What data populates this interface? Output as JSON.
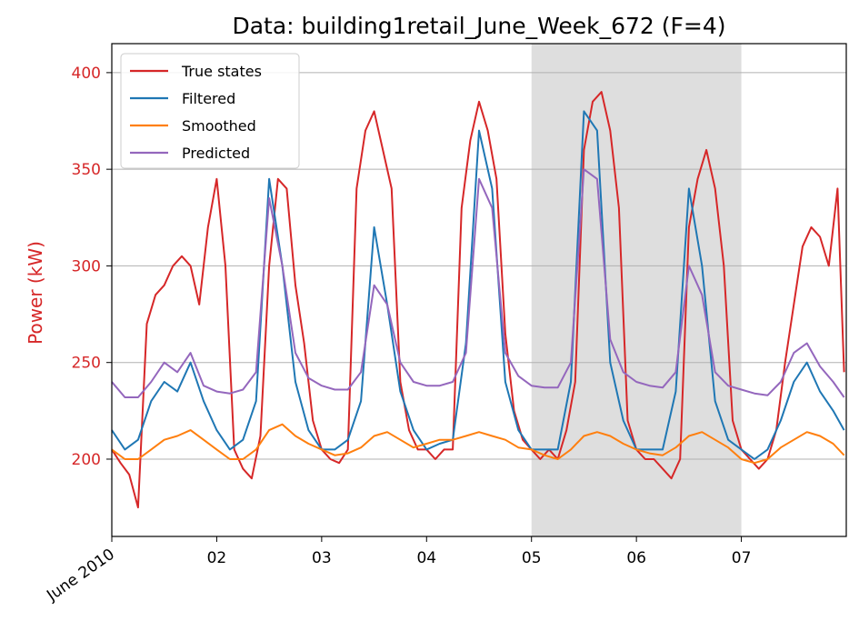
{
  "chart_data": {
    "type": "line",
    "title": "Data: building1retail_June_Week_672 (F=4)",
    "xlabel": "",
    "ylabel": "Power (kW)",
    "xlim": [
      "2010-06-01",
      "2010-06-08"
    ],
    "ylim": [
      160,
      415
    ],
    "yticks": [
      200,
      250,
      300,
      350,
      400
    ],
    "xtick_labels": [
      {
        "date": "2010-06-01",
        "label": "June 2010",
        "rotated": true
      },
      {
        "date": "2010-06-02",
        "label": "02"
      },
      {
        "date": "2010-06-03",
        "label": "03"
      },
      {
        "date": "2010-06-04",
        "label": "04"
      },
      {
        "date": "2010-06-05",
        "label": "05"
      },
      {
        "date": "2010-06-06",
        "label": "06"
      },
      {
        "date": "2010-06-07",
        "label": "07"
      }
    ],
    "grid": "horizontal",
    "legend_position": "top-left",
    "shaded_region": {
      "from": "2010-06-05",
      "to": "2010-06-07",
      "color": "#dedede"
    },
    "series": [
      {
        "name": "True states",
        "color": "#d62728",
        "x": [
          "2010-06-01 00:00",
          "2010-06-01 02:00",
          "2010-06-01 04:00",
          "2010-06-01 06:00",
          "2010-06-01 08:00",
          "2010-06-01 10:00",
          "2010-06-01 12:00",
          "2010-06-01 14:00",
          "2010-06-01 16:00",
          "2010-06-01 18:00",
          "2010-06-01 20:00",
          "2010-06-01 22:00",
          "2010-06-02 00:00",
          "2010-06-02 02:00",
          "2010-06-02 04:00",
          "2010-06-02 06:00",
          "2010-06-02 08:00",
          "2010-06-02 10:00",
          "2010-06-02 12:00",
          "2010-06-02 14:00",
          "2010-06-02 16:00",
          "2010-06-02 18:00",
          "2010-06-02 20:00",
          "2010-06-02 22:00",
          "2010-06-03 00:00",
          "2010-06-03 02:00",
          "2010-06-03 04:00",
          "2010-06-03 06:00",
          "2010-06-03 08:00",
          "2010-06-03 10:00",
          "2010-06-03 12:00",
          "2010-06-03 14:00",
          "2010-06-03 16:00",
          "2010-06-03 18:00",
          "2010-06-03 20:00",
          "2010-06-03 22:00",
          "2010-06-04 00:00",
          "2010-06-04 02:00",
          "2010-06-04 04:00",
          "2010-06-04 06:00",
          "2010-06-04 08:00",
          "2010-06-04 10:00",
          "2010-06-04 12:00",
          "2010-06-04 14:00",
          "2010-06-04 16:00",
          "2010-06-04 18:00",
          "2010-06-04 20:00",
          "2010-06-04 22:00",
          "2010-06-05 00:00",
          "2010-06-05 02:00",
          "2010-06-05 04:00",
          "2010-06-05 06:00",
          "2010-06-05 08:00",
          "2010-06-05 10:00",
          "2010-06-05 12:00",
          "2010-06-05 14:00",
          "2010-06-05 16:00",
          "2010-06-05 18:00",
          "2010-06-05 20:00",
          "2010-06-05 22:00",
          "2010-06-06 00:00",
          "2010-06-06 02:00",
          "2010-06-06 04:00",
          "2010-06-06 06:00",
          "2010-06-06 08:00",
          "2010-06-06 10:00",
          "2010-06-06 12:00",
          "2010-06-06 14:00",
          "2010-06-06 16:00",
          "2010-06-06 18:00",
          "2010-06-06 20:00",
          "2010-06-06 22:00",
          "2010-06-07 00:00",
          "2010-06-07 02:00",
          "2010-06-07 04:00",
          "2010-06-07 06:00",
          "2010-06-07 08:00",
          "2010-06-07 10:00",
          "2010-06-07 12:00",
          "2010-06-07 14:00",
          "2010-06-07 16:00",
          "2010-06-07 18:00",
          "2010-06-07 20:00",
          "2010-06-07 22:00",
          "2010-06-07 23:30"
        ],
        "y": [
          205,
          198,
          192,
          175,
          270,
          285,
          290,
          300,
          305,
          300,
          280,
          320,
          345,
          300,
          205,
          195,
          190,
          212,
          300,
          345,
          340,
          290,
          260,
          220,
          205,
          200,
          198,
          205,
          340,
          370,
          380,
          360,
          340,
          240,
          215,
          205,
          205,
          200,
          205,
          205,
          330,
          365,
          385,
          370,
          345,
          265,
          225,
          210,
          205,
          200,
          205,
          200,
          215,
          240,
          360,
          385,
          390,
          370,
          330,
          220,
          205,
          200,
          200,
          195,
          190,
          200,
          320,
          345,
          360,
          340,
          300,
          220,
          205,
          200,
          195,
          200,
          215,
          250,
          280,
          310,
          320,
          315,
          300,
          340,
          245
        ]
      },
      {
        "name": "Filtered",
        "color": "#1f77b4",
        "x": [
          "2010-06-01 00:00",
          "2010-06-01 03:00",
          "2010-06-01 06:00",
          "2010-06-01 09:00",
          "2010-06-01 12:00",
          "2010-06-01 15:00",
          "2010-06-01 18:00",
          "2010-06-01 21:00",
          "2010-06-02 00:00",
          "2010-06-02 03:00",
          "2010-06-02 06:00",
          "2010-06-02 09:00",
          "2010-06-02 12:00",
          "2010-06-02 15:00",
          "2010-06-02 18:00",
          "2010-06-02 21:00",
          "2010-06-03 00:00",
          "2010-06-03 03:00",
          "2010-06-03 06:00",
          "2010-06-03 09:00",
          "2010-06-03 12:00",
          "2010-06-03 15:00",
          "2010-06-03 18:00",
          "2010-06-03 21:00",
          "2010-06-04 00:00",
          "2010-06-04 03:00",
          "2010-06-04 06:00",
          "2010-06-04 09:00",
          "2010-06-04 12:00",
          "2010-06-04 15:00",
          "2010-06-04 18:00",
          "2010-06-04 21:00",
          "2010-06-05 00:00",
          "2010-06-05 03:00",
          "2010-06-05 06:00",
          "2010-06-05 09:00",
          "2010-06-05 12:00",
          "2010-06-05 15:00",
          "2010-06-05 18:00",
          "2010-06-05 21:00",
          "2010-06-06 00:00",
          "2010-06-06 03:00",
          "2010-06-06 06:00",
          "2010-06-06 09:00",
          "2010-06-06 12:00",
          "2010-06-06 15:00",
          "2010-06-06 18:00",
          "2010-06-06 21:00",
          "2010-06-07 00:00",
          "2010-06-07 03:00",
          "2010-06-07 06:00",
          "2010-06-07 09:00",
          "2010-06-07 12:00",
          "2010-06-07 15:00",
          "2010-06-07 18:00",
          "2010-06-07 21:00",
          "2010-06-07 23:30"
        ],
        "y": [
          215,
          205,
          210,
          230,
          240,
          235,
          250,
          230,
          215,
          205,
          210,
          230,
          345,
          300,
          240,
          215,
          205,
          205,
          210,
          230,
          320,
          280,
          235,
          215,
          205,
          208,
          210,
          260,
          370,
          340,
          240,
          215,
          205,
          205,
          205,
          240,
          380,
          370,
          250,
          220,
          205,
          205,
          205,
          235,
          340,
          300,
          230,
          210,
          205,
          200,
          205,
          220,
          240,
          250,
          235,
          225,
          215
        ]
      },
      {
        "name": "Smoothed",
        "color": "#ff7f0e",
        "x": [
          "2010-06-01 00:00",
          "2010-06-01 03:00",
          "2010-06-01 06:00",
          "2010-06-01 09:00",
          "2010-06-01 12:00",
          "2010-06-01 15:00",
          "2010-06-01 18:00",
          "2010-06-01 21:00",
          "2010-06-02 00:00",
          "2010-06-02 03:00",
          "2010-06-02 06:00",
          "2010-06-02 09:00",
          "2010-06-02 12:00",
          "2010-06-02 15:00",
          "2010-06-02 18:00",
          "2010-06-02 21:00",
          "2010-06-03 00:00",
          "2010-06-03 03:00",
          "2010-06-03 06:00",
          "2010-06-03 09:00",
          "2010-06-03 12:00",
          "2010-06-03 15:00",
          "2010-06-03 18:00",
          "2010-06-03 21:00",
          "2010-06-04 00:00",
          "2010-06-04 03:00",
          "2010-06-04 06:00",
          "2010-06-04 09:00",
          "2010-06-04 12:00",
          "2010-06-04 15:00",
          "2010-06-04 18:00",
          "2010-06-04 21:00",
          "2010-06-05 00:00",
          "2010-06-05 03:00",
          "2010-06-05 06:00",
          "2010-06-05 09:00",
          "2010-06-05 12:00",
          "2010-06-05 15:00",
          "2010-06-05 18:00",
          "2010-06-05 21:00",
          "2010-06-06 00:00",
          "2010-06-06 03:00",
          "2010-06-06 06:00",
          "2010-06-06 09:00",
          "2010-06-06 12:00",
          "2010-06-06 15:00",
          "2010-06-06 18:00",
          "2010-06-06 21:00",
          "2010-06-07 00:00",
          "2010-06-07 03:00",
          "2010-06-07 06:00",
          "2010-06-07 09:00",
          "2010-06-07 12:00",
          "2010-06-07 15:00",
          "2010-06-07 18:00",
          "2010-06-07 21:00",
          "2010-06-07 23:30"
        ],
        "y": [
          205,
          200,
          200,
          205,
          210,
          212,
          215,
          210,
          205,
          200,
          200,
          205,
          215,
          218,
          212,
          208,
          205,
          202,
          203,
          206,
          212,
          214,
          210,
          206,
          208,
          210,
          210,
          212,
          214,
          212,
          210,
          206,
          205,
          202,
          200,
          205,
          212,
          214,
          212,
          208,
          205,
          203,
          202,
          206,
          212,
          214,
          210,
          206,
          200,
          198,
          200,
          206,
          210,
          214,
          212,
          208,
          202
        ]
      },
      {
        "name": "Predicted",
        "color": "#9467bd",
        "x": [
          "2010-06-01 00:00",
          "2010-06-01 03:00",
          "2010-06-01 06:00",
          "2010-06-01 09:00",
          "2010-06-01 12:00",
          "2010-06-01 15:00",
          "2010-06-01 18:00",
          "2010-06-01 21:00",
          "2010-06-02 00:00",
          "2010-06-02 03:00",
          "2010-06-02 06:00",
          "2010-06-02 09:00",
          "2010-06-02 12:00",
          "2010-06-02 15:00",
          "2010-06-02 18:00",
          "2010-06-02 21:00",
          "2010-06-03 00:00",
          "2010-06-03 03:00",
          "2010-06-03 06:00",
          "2010-06-03 09:00",
          "2010-06-03 12:00",
          "2010-06-03 15:00",
          "2010-06-03 18:00",
          "2010-06-03 21:00",
          "2010-06-04 00:00",
          "2010-06-04 03:00",
          "2010-06-04 06:00",
          "2010-06-04 09:00",
          "2010-06-04 12:00",
          "2010-06-04 15:00",
          "2010-06-04 18:00",
          "2010-06-04 21:00",
          "2010-06-05 00:00",
          "2010-06-05 03:00",
          "2010-06-05 06:00",
          "2010-06-05 09:00",
          "2010-06-05 12:00",
          "2010-06-05 15:00",
          "2010-06-05 18:00",
          "2010-06-05 21:00",
          "2010-06-06 00:00",
          "2010-06-06 03:00",
          "2010-06-06 06:00",
          "2010-06-06 09:00",
          "2010-06-06 12:00",
          "2010-06-06 15:00",
          "2010-06-06 18:00",
          "2010-06-06 21:00",
          "2010-06-07 00:00",
          "2010-06-07 03:00",
          "2010-06-07 06:00",
          "2010-06-07 09:00",
          "2010-06-07 12:00",
          "2010-06-07 15:00",
          "2010-06-07 18:00",
          "2010-06-07 21:00",
          "2010-06-07 23:30"
        ],
        "y": [
          240,
          232,
          232,
          240,
          250,
          245,
          255,
          238,
          235,
          234,
          236,
          245,
          335,
          300,
          255,
          242,
          238,
          236,
          236,
          245,
          290,
          280,
          250,
          240,
          238,
          238,
          240,
          255,
          345,
          330,
          255,
          243,
          238,
          237,
          237,
          250,
          350,
          345,
          262,
          245,
          240,
          238,
          237,
          245,
          300,
          285,
          245,
          238,
          236,
          234,
          233,
          240,
          255,
          260,
          248,
          240,
          232
        ]
      }
    ]
  }
}
